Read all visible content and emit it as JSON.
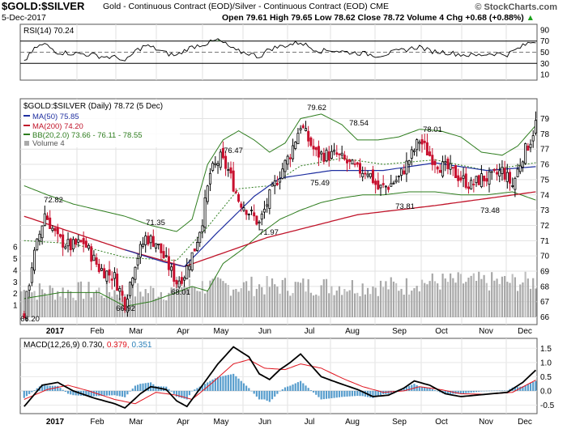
{
  "header": {
    "symbol": "$GOLD:$SILVER",
    "description": "Gold - Continuous Contract (EOD)/Silver - Continuous Contract (EOD)",
    "exchange": "CME",
    "brand": "© StockCharts.com",
    "date": "5-Dec-2017",
    "quote": "Open 79.61  High 79.65  Low 78.62  Close 78.72  Volume 4  Chg +0.68 (+0.88%)",
    "quote_arrow": "▲"
  },
  "rsi_panel": {
    "label": "RSI(14) 70.24",
    "ticks": [
      10,
      30,
      50,
      70,
      90
    ],
    "overbought": 70,
    "oversold": 30
  },
  "price_panel": {
    "title": "$GOLD:$SILVER (Daily) 78.72 (5 Dec)",
    "legend": [
      {
        "label": "MA(50) 75.85",
        "color": "#1f2fa0"
      },
      {
        "label": "MA(200) 74.20",
        "color": "#c0142a"
      },
      {
        "label": "BB(20,2.0) 73.66 - 76.11 - 78.55",
        "color": "#2e7d1e"
      },
      {
        "label": "Volume 4",
        "color": "#aaaaaa"
      }
    ],
    "y_ticks": [
      66,
      67,
      68,
      69,
      70,
      71,
      72,
      73,
      74,
      75,
      76,
      77,
      78,
      79
    ],
    "vol_ticks": [
      1,
      2,
      3,
      4,
      5,
      6
    ],
    "annotations": [
      {
        "text": "66.20"
      },
      {
        "text": "72.82"
      },
      {
        "text": "66.92"
      },
      {
        "text": "71.35"
      },
      {
        "text": "68.01"
      },
      {
        "text": "76.47"
      },
      {
        "text": "71.97"
      },
      {
        "text": "79.62"
      },
      {
        "text": "78.54"
      },
      {
        "text": "75.49"
      },
      {
        "text": "73.81"
      },
      {
        "text": "78.01"
      },
      {
        "text": "73.48"
      }
    ]
  },
  "macd_panel": {
    "label": "MACD(12,26,9) 0.730,",
    "signal_value": "0.379,",
    "hist_value": "0.351",
    "y_ticks": [
      "1.5",
      "1.0",
      "0.5",
      "0.0",
      "-0.5"
    ]
  },
  "x_axis": {
    "labels": [
      "2017",
      "Feb",
      "Mar",
      "Apr",
      "May",
      "Jun",
      "Jul",
      "Aug",
      "Sep",
      "Oct",
      "Nov",
      "Dec"
    ]
  },
  "chart_data": {
    "type": "candlestick",
    "title": "$GOLD:$SILVER (Daily)",
    "period": "Jan 2017 - 5 Dec 2017",
    "close_last": 78.72,
    "ylim": [
      65.5,
      80.3
    ],
    "close_series_approx": [
      [
        1,
        66.2
      ],
      [
        4,
        69.4
      ],
      [
        9,
        72.8
      ],
      [
        14,
        71.1
      ],
      [
        19,
        70.6
      ],
      [
        24,
        70.9
      ],
      [
        30,
        69.2
      ],
      [
        36,
        68.6
      ],
      [
        40,
        66.9
      ],
      [
        44,
        69.6
      ],
      [
        48,
        71.2
      ],
      [
        52,
        70.9
      ],
      [
        56,
        69.6
      ],
      [
        60,
        68.3
      ],
      [
        63,
        68.8
      ],
      [
        67,
        70.5
      ],
      [
        70,
        72.4
      ],
      [
        73,
        75.4
      ],
      [
        77,
        76.4
      ],
      [
        80,
        75.6
      ],
      [
        84,
        73.7
      ],
      [
        88,
        72.9
      ],
      [
        92,
        72.1
      ],
      [
        96,
        73.9
      ],
      [
        100,
        75.4
      ],
      [
        104,
        76.7
      ],
      [
        108,
        78.6
      ],
      [
        111,
        77.6
      ],
      [
        114,
        76.7
      ],
      [
        118,
        76.6
      ],
      [
        122,
        76.6
      ],
      [
        126,
        76.1
      ],
      [
        130,
        75.6
      ],
      [
        134,
        75.6
      ],
      [
        138,
        74.4
      ],
      [
        142,
        74.6
      ],
      [
        146,
        75.1
      ],
      [
        150,
        76.3
      ],
      [
        154,
        77.6
      ],
      [
        158,
        76.6
      ],
      [
        162,
        75.9
      ],
      [
        166,
        75.6
      ],
      [
        170,
        75.1
      ],
      [
        174,
        74.6
      ],
      [
        178,
        75.1
      ],
      [
        182,
        75.1
      ],
      [
        186,
        75.6
      ],
      [
        190,
        74.6
      ],
      [
        194,
        76.6
      ],
      [
        197,
        77.6
      ],
      [
        199,
        78.7
      ]
    ],
    "ma50_approx": [
      [
        40,
        70.4
      ],
      [
        55,
        69.6
      ],
      [
        63,
        69.3
      ],
      [
        75,
        71.4
      ],
      [
        90,
        73.9
      ],
      [
        100,
        75.1
      ],
      [
        120,
        75.6
      ],
      [
        140,
        75.6
      ],
      [
        160,
        76.1
      ],
      [
        180,
        75.6
      ],
      [
        199,
        75.85
      ]
    ],
    "ma200_approx": [
      [
        1,
        72.6
      ],
      [
        40,
        70.4
      ],
      [
        63,
        69.3
      ],
      [
        95,
        71.2
      ],
      [
        130,
        72.7
      ],
      [
        160,
        73.3
      ],
      [
        199,
        74.2
      ]
    ],
    "bb_upper_approx": [
      [
        1,
        74.6
      ],
      [
        10,
        74.0
      ],
      [
        20,
        73.4
      ],
      [
        30,
        73.0
      ],
      [
        40,
        72.6
      ],
      [
        50,
        72.0
      ],
      [
        60,
        71.6
      ],
      [
        66,
        72.4
      ],
      [
        72,
        76.0
      ],
      [
        78,
        77.6
      ],
      [
        84,
        78.2
      ],
      [
        90,
        77.6
      ],
      [
        96,
        76.8
      ],
      [
        102,
        77.4
      ],
      [
        108,
        79.0
      ],
      [
        116,
        79.3
      ],
      [
        124,
        78.6
      ],
      [
        130,
        77.6
      ],
      [
        138,
        77.6
      ],
      [
        146,
        77.8
      ],
      [
        154,
        78.3
      ],
      [
        162,
        78.2
      ],
      [
        170,
        77.8
      ],
      [
        178,
        76.8
      ],
      [
        186,
        76.6
      ],
      [
        192,
        77.2
      ],
      [
        199,
        78.55
      ]
    ],
    "bb_mid_approx": [
      [
        1,
        71.0
      ],
      [
        20,
        70.8
      ],
      [
        40,
        69.9
      ],
      [
        60,
        69.7
      ],
      [
        72,
        71.9
      ],
      [
        84,
        74.4
      ],
      [
        96,
        74.6
      ],
      [
        108,
        75.9
      ],
      [
        124,
        76.4
      ],
      [
        140,
        76.0
      ],
      [
        160,
        76.3
      ],
      [
        180,
        75.6
      ],
      [
        199,
        76.11
      ]
    ],
    "bb_lower_approx": [
      [
        1,
        67.2
      ],
      [
        15,
        67.6
      ],
      [
        30,
        67.6
      ],
      [
        40,
        66.7
      ],
      [
        50,
        67.0
      ],
      [
        60,
        67.6
      ],
      [
        66,
        68.0
      ],
      [
        72,
        67.7
      ],
      [
        78,
        69.5
      ],
      [
        86,
        70.5
      ],
      [
        92,
        71.4
      ],
      [
        100,
        72.4
      ],
      [
        108,
        73.0
      ],
      [
        116,
        73.5
      ],
      [
        124,
        73.8
      ],
      [
        132,
        74.0
      ],
      [
        140,
        74.0
      ],
      [
        150,
        74.2
      ],
      [
        160,
        74.2
      ],
      [
        170,
        74.0
      ],
      [
        180,
        74.0
      ],
      [
        190,
        74.2
      ],
      [
        199,
        73.66
      ]
    ],
    "rsi_approx": [
      [
        1,
        34
      ],
      [
        6,
        60
      ],
      [
        9,
        64
      ],
      [
        14,
        50
      ],
      [
        20,
        48
      ],
      [
        26,
        46
      ],
      [
        32,
        42
      ],
      [
        38,
        40
      ],
      [
        40,
        32
      ],
      [
        44,
        52
      ],
      [
        48,
        62
      ],
      [
        52,
        56
      ],
      [
        56,
        48
      ],
      [
        60,
        44
      ],
      [
        64,
        56
      ],
      [
        68,
        62
      ],
      [
        72,
        66
      ],
      [
        76,
        72
      ],
      [
        79,
        64
      ],
      [
        83,
        52
      ],
      [
        88,
        48
      ],
      [
        92,
        42
      ],
      [
        96,
        56
      ],
      [
        100,
        60
      ],
      [
        104,
        64
      ],
      [
        108,
        68
      ],
      [
        112,
        58
      ],
      [
        116,
        52
      ],
      [
        120,
        54
      ],
      [
        126,
        50
      ],
      [
        132,
        48
      ],
      [
        138,
        44
      ],
      [
        144,
        50
      ],
      [
        150,
        56
      ],
      [
        154,
        60
      ],
      [
        158,
        52
      ],
      [
        164,
        50
      ],
      [
        170,
        46
      ],
      [
        176,
        44
      ],
      [
        182,
        48
      ],
      [
        188,
        46
      ],
      [
        192,
        56
      ],
      [
        196,
        66
      ],
      [
        199,
        70.24
      ]
    ],
    "macd_approx": [
      [
        1,
        -0.55
      ],
      [
        8,
        0.2
      ],
      [
        14,
        0.3
      ],
      [
        20,
        0.0
      ],
      [
        28,
        -0.25
      ],
      [
        36,
        -0.45
      ],
      [
        40,
        -0.6
      ],
      [
        46,
        -0.1
      ],
      [
        50,
        0.15
      ],
      [
        56,
        0.05
      ],
      [
        60,
        -0.35
      ],
      [
        64,
        -0.55
      ],
      [
        70,
        0.2
      ],
      [
        76,
        0.95
      ],
      [
        82,
        1.55
      ],
      [
        88,
        1.2
      ],
      [
        92,
        0.6
      ],
      [
        96,
        0.4
      ],
      [
        100,
        0.75
      ],
      [
        104,
        1.0
      ],
      [
        108,
        1.3
      ],
      [
        112,
        0.9
      ],
      [
        116,
        0.5
      ],
      [
        122,
        0.3
      ],
      [
        130,
        0.05
      ],
      [
        136,
        -0.2
      ],
      [
        142,
        -0.15
      ],
      [
        148,
        0.1
      ],
      [
        152,
        0.35
      ],
      [
        158,
        0.2
      ],
      [
        164,
        -0.1
      ],
      [
        170,
        -0.2
      ],
      [
        176,
        -0.15
      ],
      [
        182,
        -0.1
      ],
      [
        188,
        -0.05
      ],
      [
        194,
        0.3
      ],
      [
        199,
        0.73
      ]
    ],
    "signal_approx": [
      [
        1,
        -0.3
      ],
      [
        10,
        0.05
      ],
      [
        18,
        0.2
      ],
      [
        26,
        0.0
      ],
      [
        36,
        -0.3
      ],
      [
        44,
        -0.45
      ],
      [
        52,
        -0.05
      ],
      [
        60,
        -0.15
      ],
      [
        66,
        -0.3
      ],
      [
        74,
        0.3
      ],
      [
        82,
        0.95
      ],
      [
        88,
        1.1
      ],
      [
        94,
        0.8
      ],
      [
        102,
        0.75
      ],
      [
        108,
        0.95
      ],
      [
        116,
        0.8
      ],
      [
        124,
        0.45
      ],
      [
        132,
        0.15
      ],
      [
        140,
        -0.05
      ],
      [
        148,
        0.0
      ],
      [
        154,
        0.15
      ],
      [
        162,
        0.05
      ],
      [
        170,
        -0.1
      ],
      [
        180,
        -0.12
      ],
      [
        190,
        -0.05
      ],
      [
        199,
        0.379
      ]
    ],
    "histogram_last": 0.351
  }
}
